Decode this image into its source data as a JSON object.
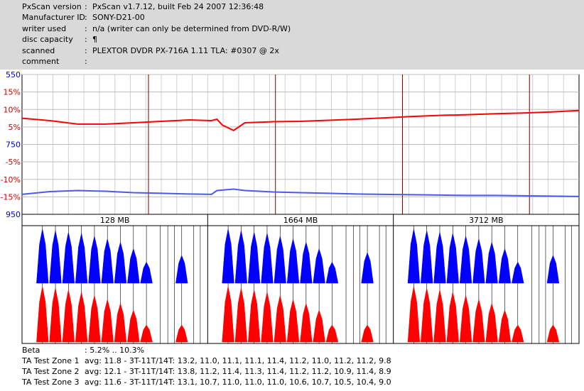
{
  "header": {
    "rows": [
      {
        "label": "PxScan version",
        "value": "PxScan v1.7.12, built Feb 24 2007 12:36:48"
      },
      {
        "label": "Manufacturer ID",
        "value": "SONY-D21-00"
      },
      {
        "label": "writer used",
        "value": "n/a (writer can only be determined from DVD-R/W)"
      },
      {
        "label": "disc capacity",
        "value": "¶"
      },
      {
        "label": "scanned",
        "value": "PLEXTOR DVDR PX-716A 1.11 TLA: #0307 @ 2x"
      },
      {
        "label": "comment",
        "value": ""
      }
    ]
  },
  "footer": {
    "rows": [
      {
        "label": "Beta",
        "value": ": 5.2% .. 10.3%"
      },
      {
        "label": "TA Test Zone 1",
        "value": "avg: 11.8 - 3T-11T/14T: 13.2, 11.0, 11.1, 11.1, 11.4, 11.2, 11.0, 11.2, 11.2, 9.8"
      },
      {
        "label": "TA Test Zone 2",
        "value": "avg: 12.1 - 3T-11T/14T: 13.8, 11.2, 11.4, 11.3, 11.4, 11.2, 11.2, 10.9, 11.4, 8.9"
      },
      {
        "label": "TA Test Zone 3",
        "value": "avg: 11.6 - 3T-11T/14T: 13.1, 10.7, 11.0, 11.0, 11.0, 10.6, 10.7, 10.5, 10.4, 9.0"
      }
    ]
  },
  "chart_data": [
    {
      "type": "line",
      "y_tick_labels": [
        {
          "text": "550",
          "color": "#0000cc"
        },
        {
          "text": "15%",
          "color": "#cc0000"
        },
        {
          "text": "10%",
          "color": "#cc0000"
        },
        {
          "text": "5%",
          "color": "#cc0000"
        },
        {
          "text": "750",
          "color": "#0000cc"
        },
        {
          "text": "-5%",
          "color": "#cc0000"
        },
        {
          "text": "-10%",
          "color": "#cc0000"
        },
        {
          "text": "-15%",
          "color": "#cc0000"
        },
        {
          "text": "950",
          "color": "#0000cc"
        }
      ],
      "y_range": [
        -20,
        20
      ],
      "x_range": [
        0,
        1
      ],
      "grid": true,
      "series": [
        {
          "color": "#ff0000",
          "x": [
            0.0,
            0.05,
            0.1,
            0.15,
            0.2,
            0.25,
            0.3,
            0.34,
            0.35,
            0.36,
            0.38,
            0.4,
            0.45,
            0.5,
            0.55,
            0.6,
            0.65,
            0.7,
            0.75,
            0.8,
            0.85,
            0.9,
            0.95,
            1.0
          ],
          "y": [
            7.5,
            6.8,
            5.8,
            5.8,
            6.2,
            6.6,
            7.0,
            6.8,
            7.2,
            5.5,
            4.0,
            6.2,
            6.5,
            6.6,
            6.9,
            7.2,
            7.6,
            8.0,
            8.3,
            8.5,
            8.8,
            9.0,
            9.3,
            9.7
          ]
        },
        {
          "color": "#4a5aee",
          "x": [
            0.0,
            0.05,
            0.1,
            0.15,
            0.2,
            0.25,
            0.3,
            0.34,
            0.35,
            0.38,
            0.4,
            0.45,
            0.5,
            0.55,
            0.6,
            0.65,
            0.7,
            0.75,
            0.8,
            0.85,
            0.9,
            0.95,
            1.0
          ],
          "y": [
            -14.3,
            -13.5,
            -13.2,
            -13.4,
            -13.8,
            -14.0,
            -14.2,
            -14.3,
            -13.2,
            -12.8,
            -13.2,
            -13.6,
            -13.8,
            -14.0,
            -14.2,
            -14.3,
            -14.4,
            -14.5,
            -14.6,
            -14.6,
            -14.7,
            -14.8,
            -14.9
          ]
        }
      ]
    },
    {
      "type": "bar",
      "zones": [
        "128 MB",
        "1664 MB",
        "3712 MB"
      ],
      "peak_categories": [
        "3T",
        "4T",
        "5T",
        "6T",
        "7T",
        "8T",
        "9T",
        "10T",
        "11T",
        "14T"
      ],
      "series": [
        {
          "color": "#0000ff",
          "zones": [
            [
              0.98,
              0.95,
              0.92,
              0.9,
              0.85,
              0.8,
              0.74,
              0.62,
              0.38,
              0.5
            ],
            [
              0.98,
              0.95,
              0.92,
              0.9,
              0.85,
              0.8,
              0.74,
              0.62,
              0.38,
              0.55
            ],
            [
              0.98,
              0.95,
              0.92,
              0.9,
              0.85,
              0.8,
              0.74,
              0.62,
              0.38,
              0.5
            ]
          ]
        },
        {
          "color": "#ff0000",
          "zones": [
            [
              0.98,
              0.95,
              0.92,
              0.88,
              0.82,
              0.75,
              0.68,
              0.56,
              0.3,
              0.3
            ],
            [
              0.98,
              0.95,
              0.92,
              0.88,
              0.82,
              0.75,
              0.68,
              0.56,
              0.3,
              0.3
            ],
            [
              0.98,
              0.95,
              0.92,
              0.88,
              0.82,
              0.75,
              0.68,
              0.56,
              0.3,
              0.3
            ]
          ]
        }
      ]
    }
  ]
}
